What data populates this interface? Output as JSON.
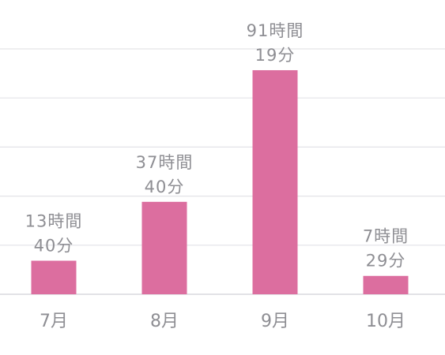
{
  "chart_data": {
    "type": "bar",
    "categories": [
      "7月",
      "8月",
      "9月",
      "10月"
    ],
    "values": [
      13.67,
      37.67,
      91.32,
      7.48
    ],
    "value_labels": [
      [
        "13時間",
        "40分"
      ],
      [
        "37時間",
        "40分"
      ],
      [
        "91時間",
        "19分"
      ],
      [
        "7時間",
        "29分"
      ]
    ],
    "ylim": [
      0,
      100
    ],
    "gridlines": [
      0,
      20,
      40,
      60,
      80,
      100
    ],
    "grid": true,
    "bar_color": "#dc6e9f"
  }
}
